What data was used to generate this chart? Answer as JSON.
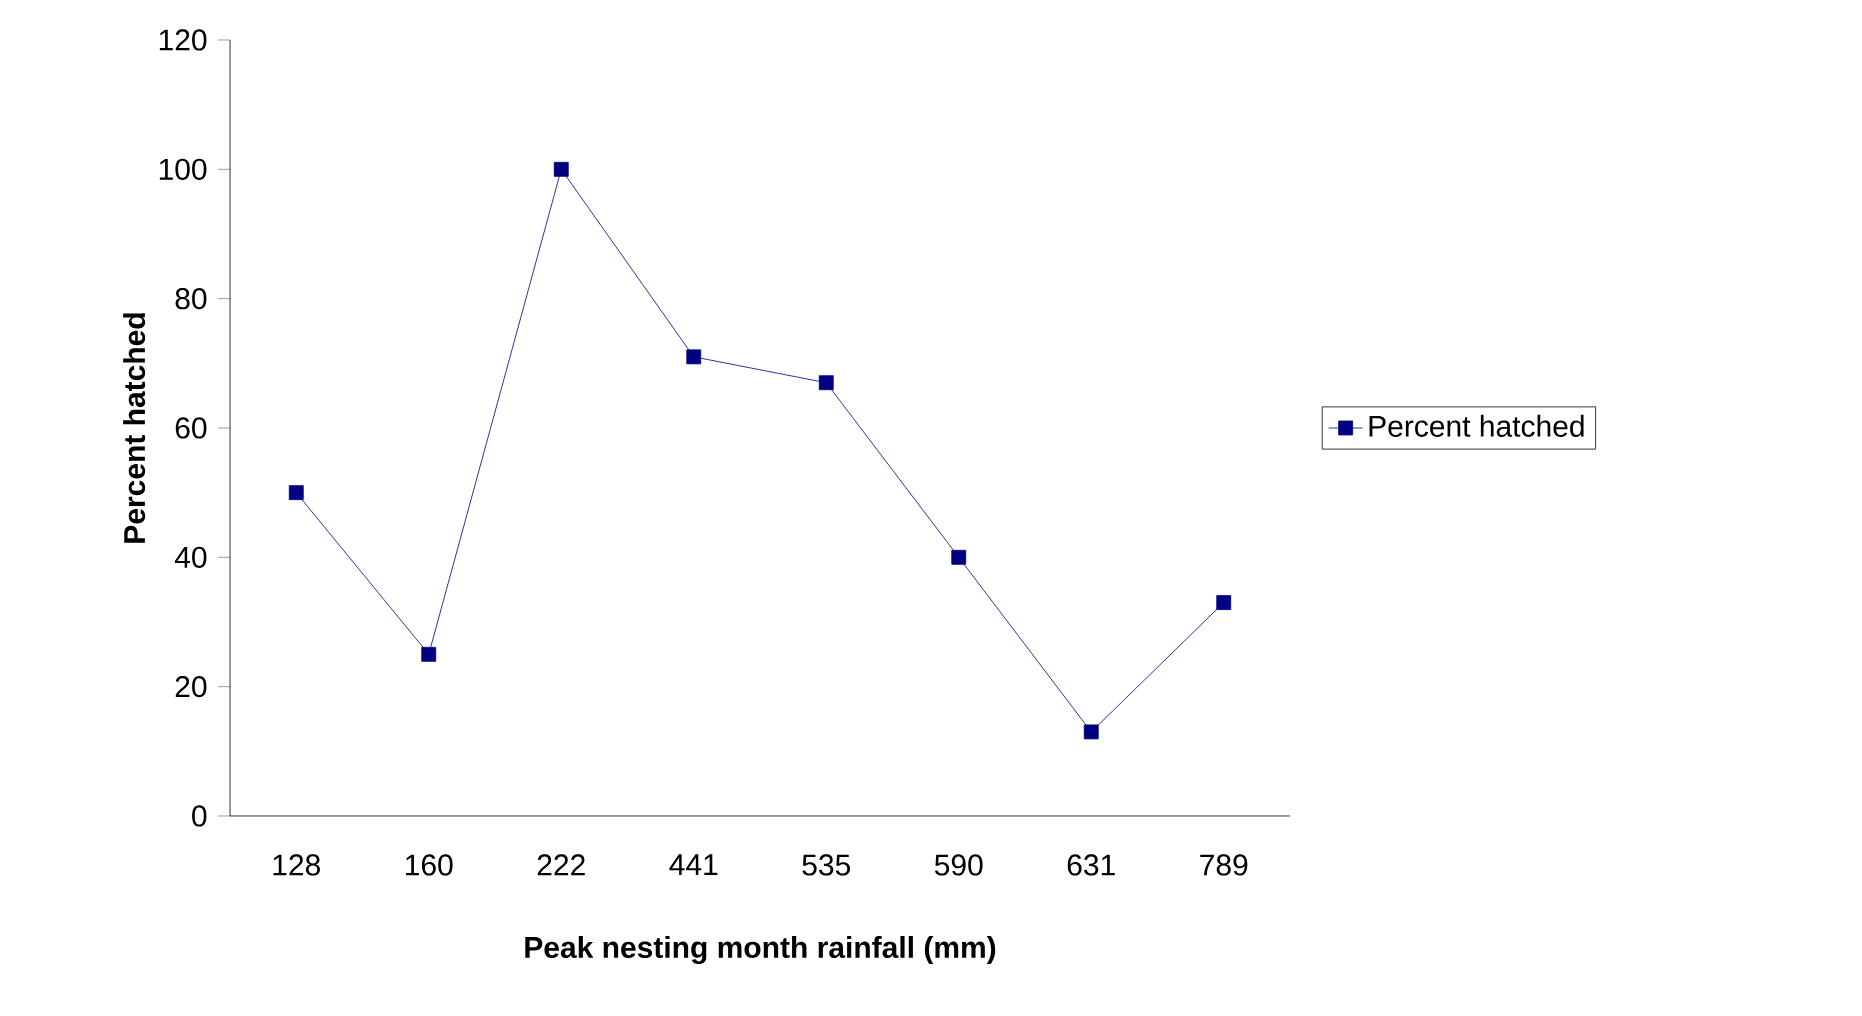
{
  "chart_data": {
    "type": "line",
    "xlabel": "Peak nesting month rainfall (mm)",
    "ylabel": "Percent hatched",
    "categories": [
      "128",
      "160",
      "222",
      "441",
      "535",
      "590",
      "631",
      "789"
    ],
    "series": [
      {
        "name": "Percent hatched",
        "color": "#000080",
        "values": [
          50,
          25,
          100,
          71,
          67,
          40,
          13,
          33
        ]
      }
    ],
    "ylim": [
      0,
      120
    ],
    "yticks": [
      0,
      20,
      40,
      60,
      80,
      100,
      120
    ],
    "marker": "square",
    "line_style": "solid",
    "legend": "right",
    "grid": false
  }
}
